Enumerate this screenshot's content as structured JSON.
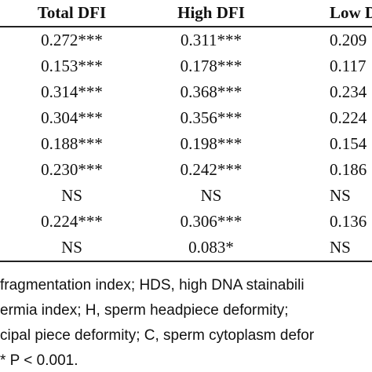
{
  "table": {
    "headers": [
      "Total DFI",
      "High DFI",
      "Low DFI"
    ],
    "rows": [
      [
        "0.272***",
        "0.311***",
        "0.209"
      ],
      [
        "0.153***",
        "0.178***",
        "0.117"
      ],
      [
        "0.314***",
        "0.368***",
        "0.234"
      ],
      [
        "0.304***",
        "0.356***",
        "0.224"
      ],
      [
        "0.188***",
        "0.198***",
        "0.154"
      ],
      [
        "0.230***",
        "0.242***",
        "0.186"
      ],
      [
        "NS",
        "NS",
        "NS"
      ],
      [
        "0.224***",
        "0.306***",
        "0.136"
      ],
      [
        "NS",
        "0.083*",
        "NS"
      ]
    ]
  },
  "footnotes": [
    "fragmentation index; HDS, high DNA stainabili",
    "ermia index; H, sperm headpiece deformity;",
    "cipal piece deformity; C, sperm cytoplasm defor",
    "* P < 0.001."
  ]
}
